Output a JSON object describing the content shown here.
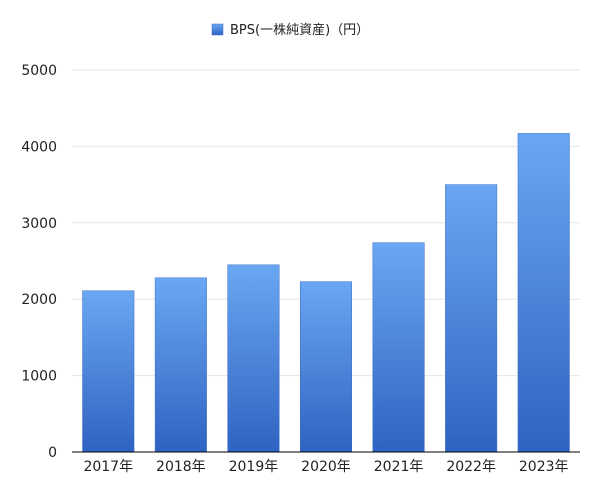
{
  "chart_data": {
    "type": "bar",
    "title": "",
    "xlabel": "",
    "ylabel": "",
    "categories": [
      "2017年",
      "2018年",
      "2019年",
      "2020年",
      "2021年",
      "2022年",
      "2023年"
    ],
    "series": [
      {
        "name": "BPS(一株純資産)（円）",
        "values": [
          2110,
          2280,
          2450,
          2230,
          2740,
          3500,
          4170
        ]
      }
    ],
    "ylim": [
      0,
      5000
    ],
    "yticks": [
      "0",
      "1000",
      "2000",
      "3000",
      "4000",
      "5000"
    ],
    "grid": true,
    "legend_position": "top-center",
    "colors": {
      "bar_top": "#6aa7f2",
      "bar_bottom": "#2f63c2",
      "grid": "#e6e6e6",
      "axis": "#000000"
    }
  }
}
